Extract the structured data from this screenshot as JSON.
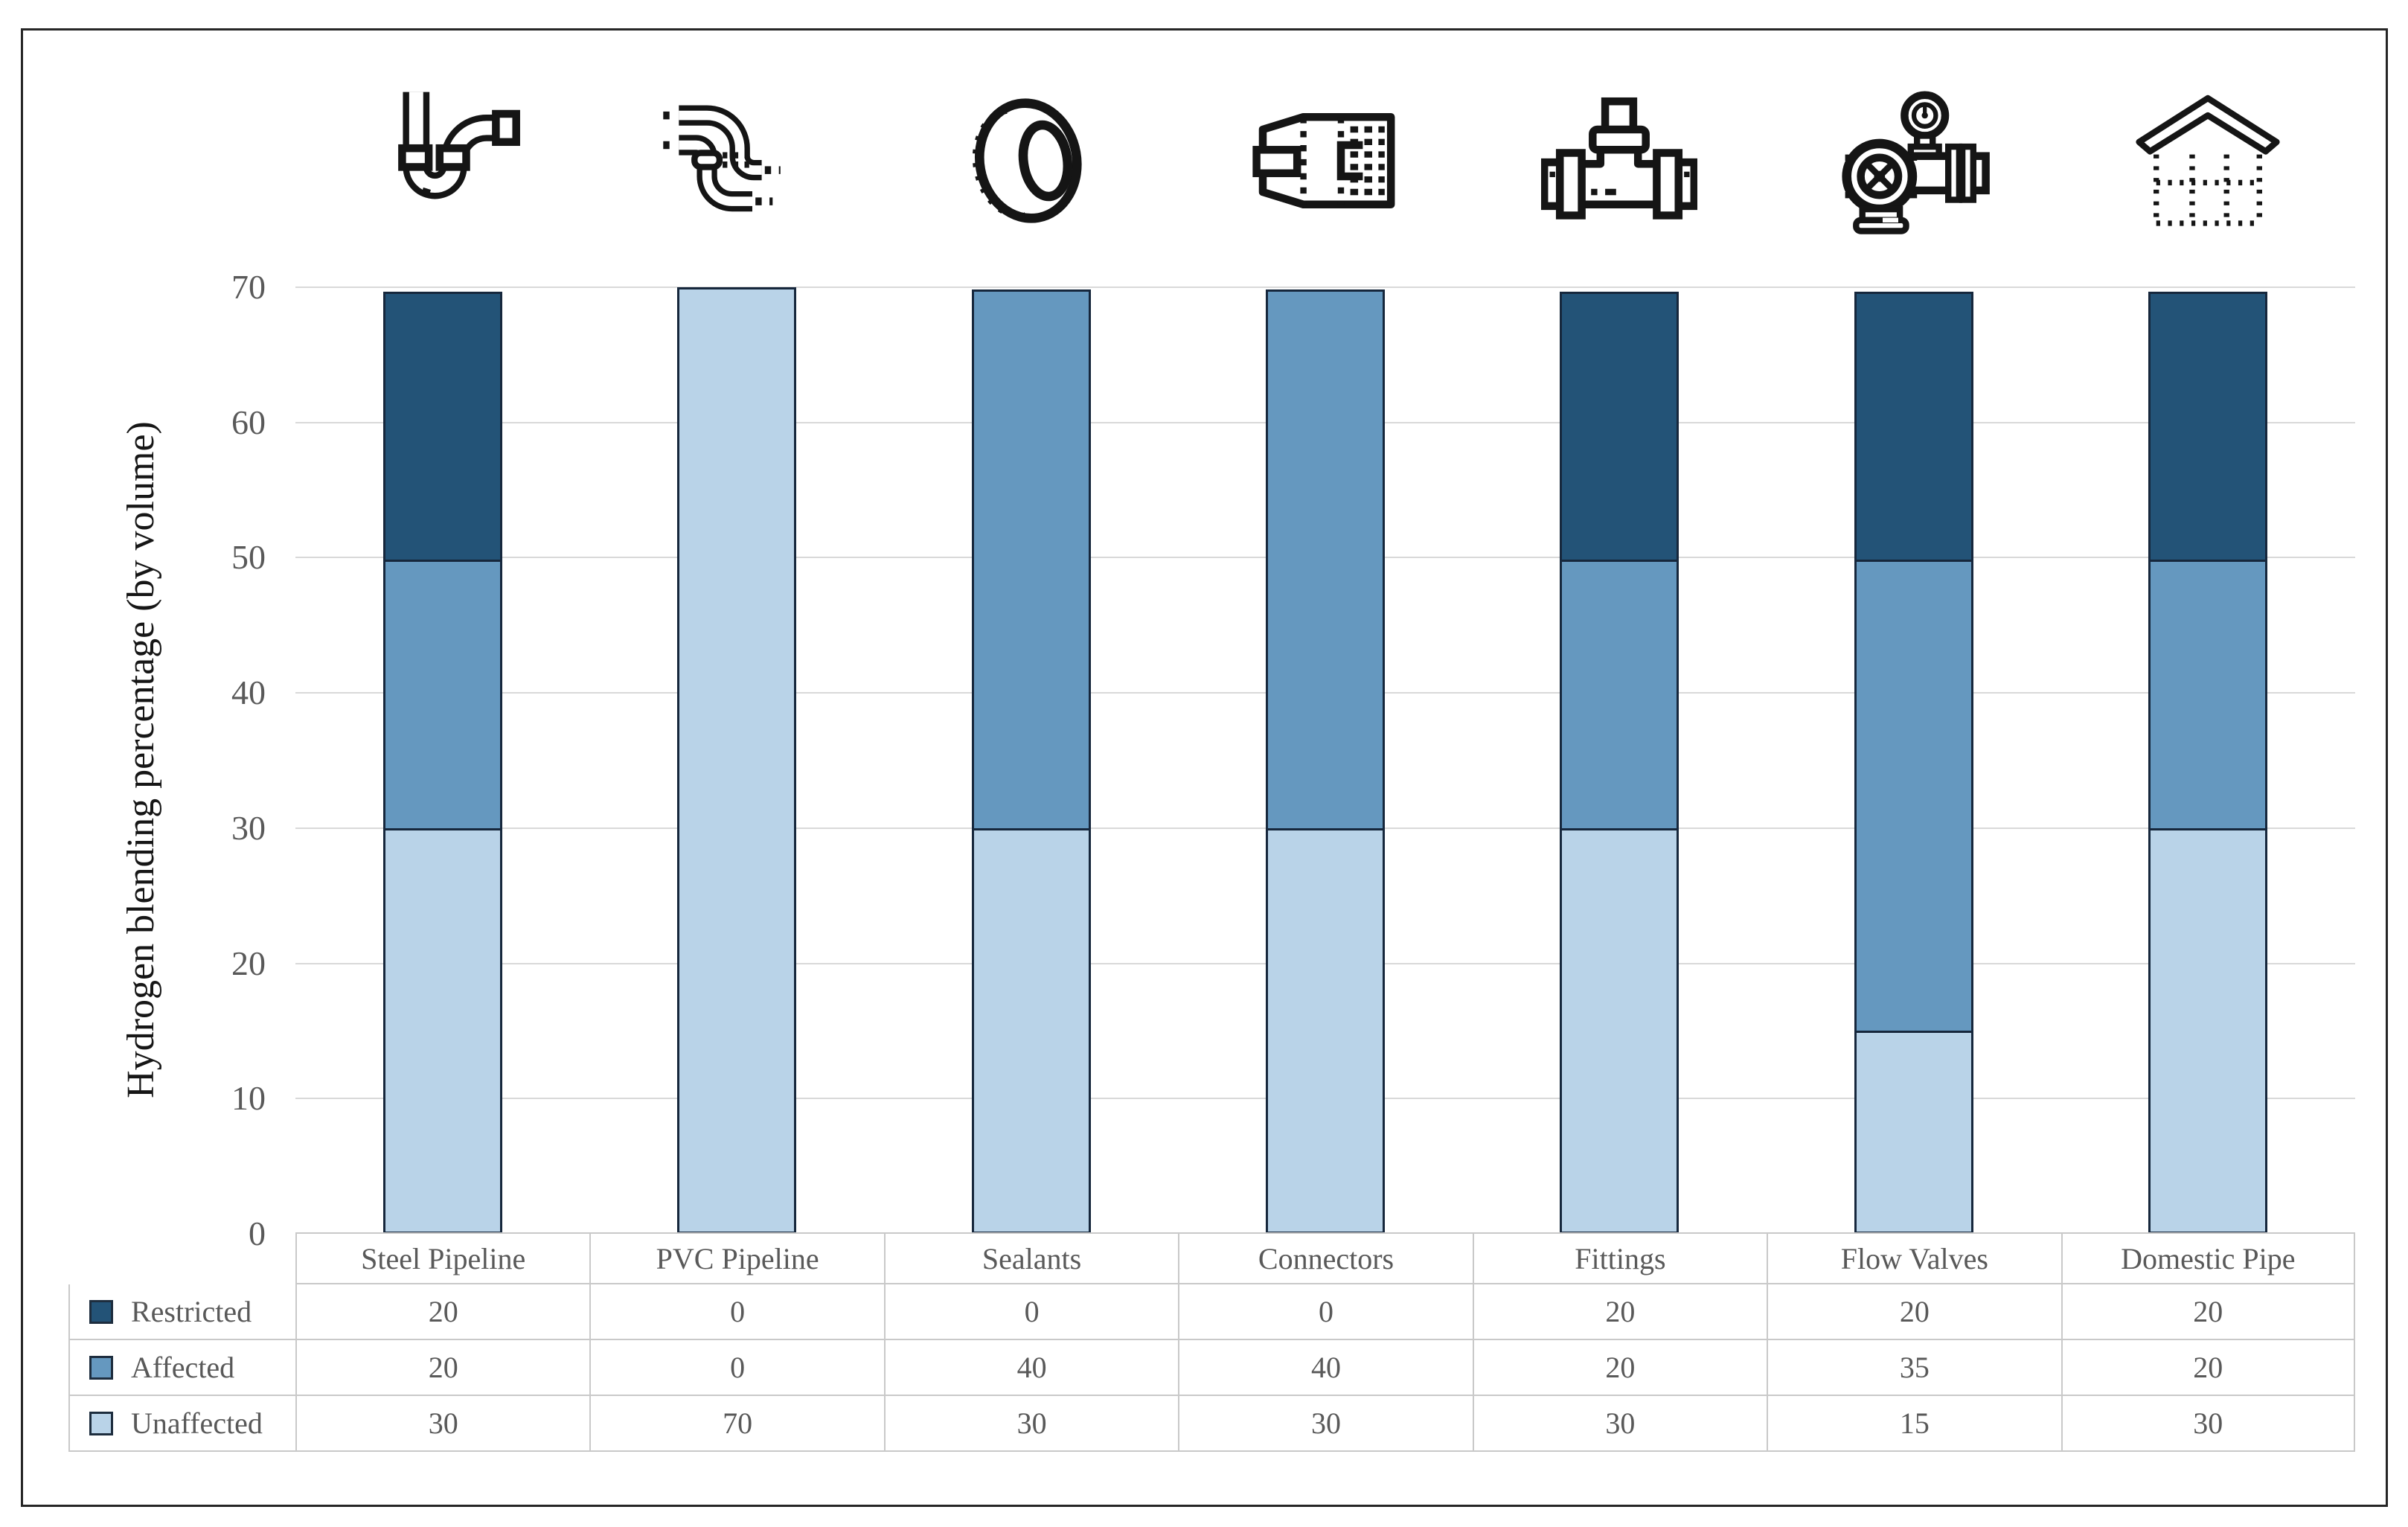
{
  "figure": {
    "background": "#ffffff",
    "frame_color": "#262626"
  },
  "chart_data": {
    "type": "bar",
    "stacked": true,
    "title": "",
    "xlabel": "",
    "ylabel": "Hydrogen blending percentage (by volume)",
    "categories": [
      "Steel Pipeline",
      "PVC Pipeline",
      "Sealants",
      "Connectors",
      "Fittings",
      "Flow Valves",
      "Domestic Pipe"
    ],
    "series": [
      {
        "name": "Restricted",
        "color": "#235377",
        "values": [
          20,
          0,
          0,
          0,
          20,
          20,
          20
        ]
      },
      {
        "name": "Affected",
        "color": "#6598BF",
        "values": [
          20,
          0,
          40,
          40,
          20,
          35,
          20
        ]
      },
      {
        "name": "Unaffected",
        "color": "#B9D3E8",
        "values": [
          30,
          70,
          30,
          30,
          30,
          15,
          30
        ]
      }
    ],
    "ylim": [
      0,
      70
    ],
    "yticks": [
      0,
      10,
      20,
      30,
      40,
      50,
      60,
      70
    ],
    "grid": true,
    "gridline_color": "#D9D9D9",
    "bar_border_color": "#16273C",
    "legend_position": "data-table-row-keys",
    "data_table_shown": true
  },
  "icons": [
    {
      "name": "sink-trap-pipe-icon",
      "category": "Steel Pipeline"
    },
    {
      "name": "pvc-pipe-icon",
      "category": "PVC Pipeline"
    },
    {
      "name": "seal-ring-icon",
      "category": "Sealants"
    },
    {
      "name": "pipe-connector-icon",
      "category": "Connectors"
    },
    {
      "name": "tee-fitting-icon",
      "category": "Fittings"
    },
    {
      "name": "flow-valve-icon",
      "category": "Flow Valves"
    },
    {
      "name": "house-pipe-icon",
      "category": "Domestic Pipe"
    }
  ],
  "text_colors": {
    "axis_ticks": "#595959",
    "table_text": "#595959",
    "axis_title": "#161616"
  }
}
